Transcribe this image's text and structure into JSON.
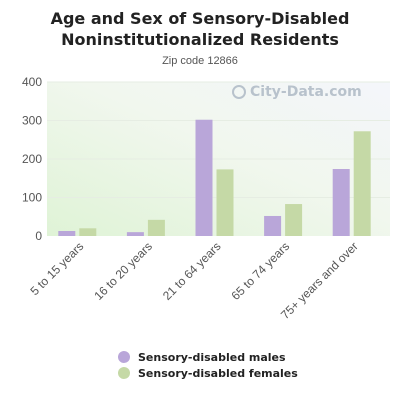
{
  "chart_data": {
    "type": "bar",
    "title_line1": "Age and Sex of Sensory-Disabled",
    "title_line2": "Noninstitutionalized Residents",
    "subtitle": "Zip code 12866",
    "categories": [
      "5 to 15 years",
      "16 to 20 years",
      "21 to 64 years",
      "65 to 74 years",
      "75+ years and over"
    ],
    "series": [
      {
        "name": "Sensory-disabled males",
        "color": "#b9a6d9",
        "values": [
          13,
          10,
          302,
          52,
          174
        ]
      },
      {
        "name": "Sensory-disabled females",
        "color": "#c5d9a6",
        "values": [
          20,
          42,
          173,
          83,
          272
        ]
      }
    ],
    "ylim": [
      0,
      400
    ],
    "yticks": [
      "0",
      "100",
      "200",
      "300",
      "400"
    ],
    "grid": true,
    "legend_position": "bottom"
  },
  "watermark": "City-Data.com"
}
